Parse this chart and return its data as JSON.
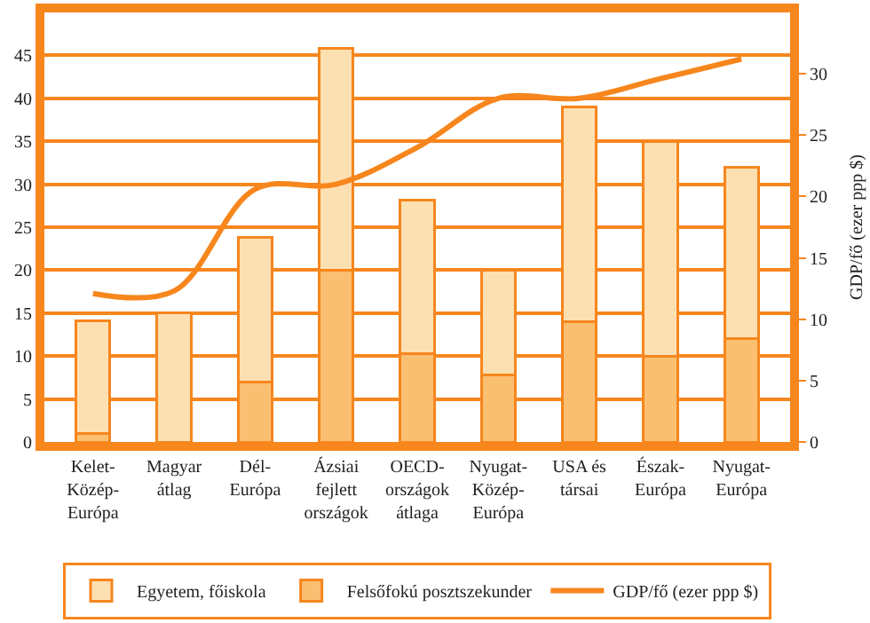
{
  "chart_data": {
    "type": "bar",
    "stacked": true,
    "categories": [
      "Kelet-\nKözép-\nEurópa",
      "Magyar\nátlag",
      "Dél-\nEurópa",
      "Ázsiai\nfejlett\nországok",
      "OECD-\nországok\nátlaga",
      "Nyugat-\nKözép-\nEurópa",
      "USA és\ntársai",
      "Észak-\nEurópa",
      "Nyugat-\nEurópa"
    ],
    "series": [
      {
        "name": "Felsőfokú posztszekunder",
        "color": "#fbbf72",
        "values": [
          1,
          0,
          7,
          20,
          10.3,
          7.8,
          14,
          10,
          12
        ]
      },
      {
        "name": "Egyetem, főiskola",
        "color": "#fde0b2",
        "values": [
          13.1,
          15,
          16.8,
          25.8,
          17.9,
          12.2,
          25,
          25,
          20
        ]
      },
      {
        "name": "GDP/fő (ezer ppp $)",
        "type": "line",
        "axis": "y2",
        "color": "#f7861d",
        "values": [
          12.1,
          12.3,
          20.6,
          21,
          24,
          28,
          28,
          29.6,
          31.2
        ]
      }
    ],
    "ylim": [
      0,
      50
    ],
    "yticks": [
      0,
      5,
      10,
      15,
      20,
      25,
      30,
      35,
      40,
      45
    ],
    "y2lim": [
      0,
      35
    ],
    "y2ticks": [
      0,
      5,
      10,
      15,
      20,
      25,
      30
    ],
    "y2label": "GDP/fő (ezer ppp $)",
    "grid": "y",
    "legend": "bottom",
    "marker": "none",
    "line_style": "solid"
  }
}
